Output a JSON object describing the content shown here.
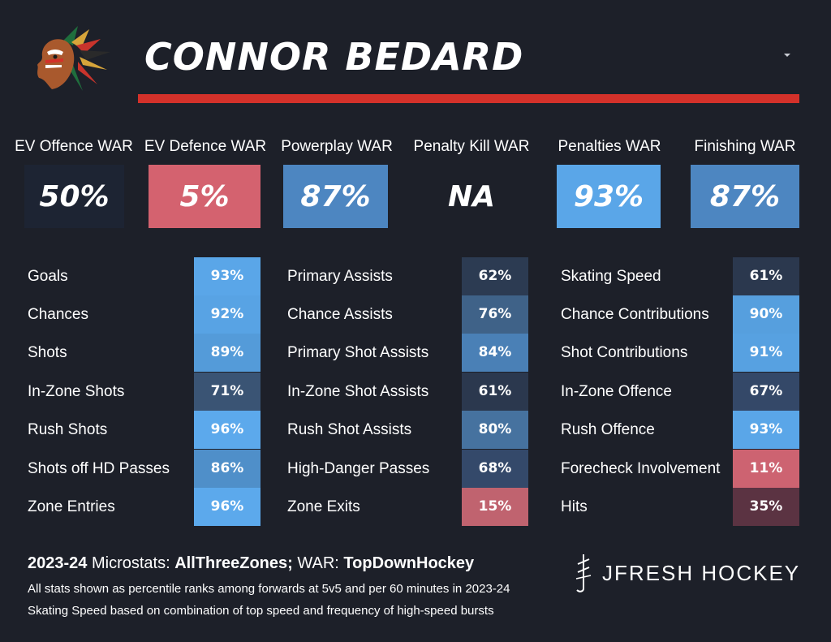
{
  "header": {
    "player_name": "CONNOR BEDARD"
  },
  "war": [
    {
      "label": "EV Offence WAR",
      "value": "50%",
      "color": "#1d2433"
    },
    {
      "label": "EV Defence WAR",
      "value": "5%",
      "color": "#d4626f"
    },
    {
      "label": "Powerplay WAR",
      "value": "87%",
      "color": "#4d86c1"
    },
    {
      "label": "Penalty Kill WAR",
      "value": "NA",
      "color": "#1d2029"
    },
    {
      "label": "Penalties WAR",
      "value": "93%",
      "color": "#5aa6e8"
    },
    {
      "label": "Finishing WAR",
      "value": "87%",
      "color": "#4d86c1"
    }
  ],
  "columns": [
    {
      "rows": [
        {
          "label": "Goals",
          "value": "93%",
          "color": "#5aa6e8"
        },
        {
          "label": "Chances",
          "value": "92%",
          "color": "#58a3e4"
        },
        {
          "label": "Shots",
          "value": "89%",
          "color": "#549bd9"
        },
        {
          "label": "In-Zone Shots",
          "value": "71%",
          "color": "#3a5474"
        },
        {
          "label": "Rush Shots",
          "value": "96%",
          "color": "#5ca9ec"
        },
        {
          "label": "Shots off HD Passes",
          "value": "86%",
          "color": "#4f8fc9"
        },
        {
          "label": "Zone Entries",
          "value": "96%",
          "color": "#5ca9ec"
        }
      ]
    },
    {
      "rows": [
        {
          "label": "Primary Assists",
          "value": "62%",
          "color": "#2c3b52"
        },
        {
          "label": "Chance Assists",
          "value": "76%",
          "color": "#3f6288"
        },
        {
          "label": "Primary Shot Assists",
          "value": "84%",
          "color": "#4a80b6"
        },
        {
          "label": "In-Zone Shot Assists",
          "value": "61%",
          "color": "#2b384e"
        },
        {
          "label": "Rush Shot Assists",
          "value": "80%",
          "color": "#46729f"
        },
        {
          "label": "High-Danger Passes",
          "value": "68%",
          "color": "#34496a"
        },
        {
          "label": "Zone Exits",
          "value": "15%",
          "color": "#c0636f"
        }
      ]
    },
    {
      "rows": [
        {
          "label": "Skating Speed",
          "value": "61%",
          "color": "#2b384e"
        },
        {
          "label": "Chance Contributions",
          "value": "90%",
          "color": "#569fde"
        },
        {
          "label": "Shot Contributions",
          "value": "91%",
          "color": "#57a1e1"
        },
        {
          "label": "In-Zone Offence",
          "value": "67%",
          "color": "#344868"
        },
        {
          "label": "Rush Offence",
          "value": "93%",
          "color": "#5aa6e8"
        },
        {
          "label": "Forecheck Involvement",
          "value": "11%",
          "color": "#cd6371"
        },
        {
          "label": "Hits",
          "value": "35%",
          "color": "#5b3342"
        }
      ]
    }
  ],
  "footer": {
    "season": "2023-24",
    "microstats_label": "Microstats:",
    "microstats_source": "AllThreeZones;",
    "war_label": "WAR:",
    "war_source": "TopDownHockey",
    "note1": "All stats shown as percentile ranks among forwards at 5v5 and per 60 minutes in 2023-24",
    "note2": "Skating Speed based on combination of top speed and frequency of high-speed bursts"
  },
  "brand": {
    "name": "JFRESH HOCKEY"
  },
  "icons": {
    "team_logo": "blackhawks-logo-icon",
    "brand_mark": "jfresh-mark-icon",
    "caret": "caret-down-icon"
  }
}
